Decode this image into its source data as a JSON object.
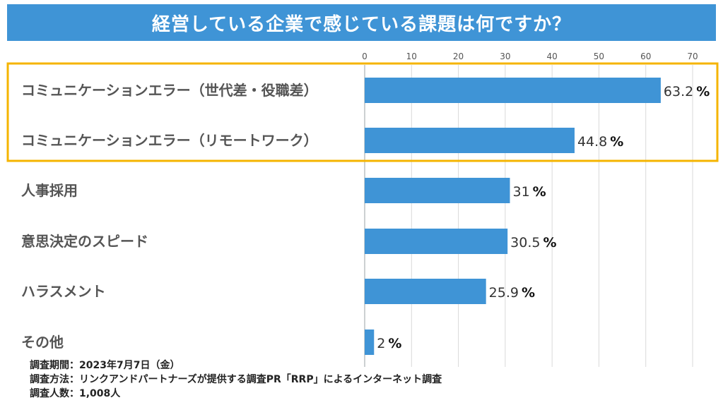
{
  "title": "経営している企業で感じている課題は何ですか？",
  "chart_data": {
    "type": "bar",
    "orientation": "horizontal",
    "categories": [
      "コミュニケーションエラー（世代差・役職差）",
      "コミュニケーションエラー（リモートワーク）",
      "人事採用",
      "意思決定のスピード",
      "ハラスメント",
      "その他"
    ],
    "values": [
      63.2,
      44.8,
      31,
      30.5,
      25.9,
      2
    ],
    "value_labels": [
      "63.2",
      "44.8",
      "31",
      "30.5",
      "25.9",
      "2"
    ],
    "unit": "%",
    "xlim": [
      0,
      70
    ],
    "xticks": [
      0,
      10,
      20,
      30,
      40,
      50,
      60,
      70
    ],
    "axis_position": "top",
    "grid": true,
    "bar_color": "#3f94d6",
    "highlight_color": "#f5b400",
    "highlighted_categories": [
      0,
      1
    ]
  },
  "notes": [
    "調査期間：2023年7月7日（金）",
    "調査方法：リンクアンドパートナーズが提供する調査PR「RRP」によるインターネット調査",
    "調査人数：1,008人"
  ]
}
